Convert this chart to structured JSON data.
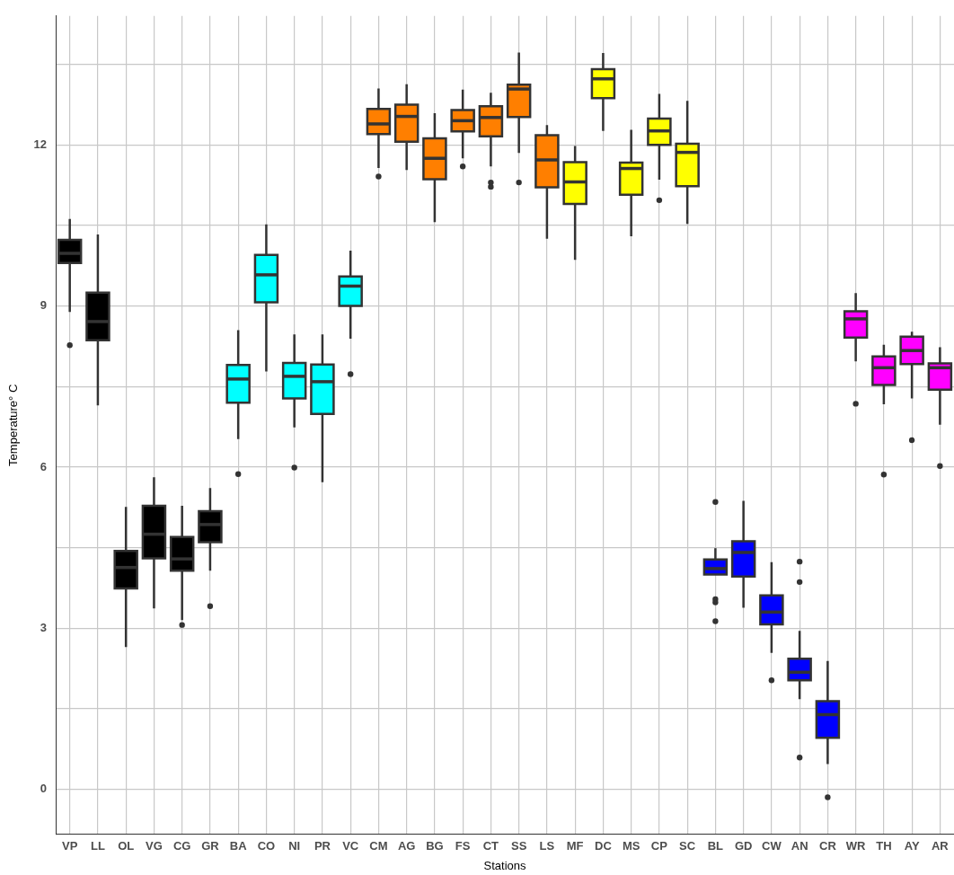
{
  "chart_data": {
    "type": "box",
    "xlabel": "Stations",
    "ylabel": "Temperature° C",
    "categories": [
      "VP",
      "LL",
      "OL",
      "VG",
      "CG",
      "GR",
      "BA",
      "CO",
      "NI",
      "PR",
      "VC",
      "CM",
      "AG",
      "BG",
      "FS",
      "CT",
      "SS",
      "LS",
      "MF",
      "DC",
      "MS",
      "CP",
      "SC",
      "BL",
      "GD",
      "CW",
      "AN",
      "CR",
      "WR",
      "TH",
      "AY",
      "AR"
    ],
    "series": [
      {
        "color": "#000000",
        "boxes": [
          {
            "low": 8.89,
            "q1": 9.8,
            "median": 9.98,
            "q3": 10.23,
            "high": 10.62,
            "outliers": [
              8.27
            ]
          },
          {
            "low": 7.15,
            "q1": 8.36,
            "median": 8.71,
            "q3": 9.25,
            "high": 10.33
          },
          {
            "low": 2.65,
            "q1": 3.74,
            "median": 4.13,
            "q3": 4.44,
            "high": 5.26
          },
          {
            "low": 3.37,
            "q1": 4.3,
            "median": 4.75,
            "q3": 5.28,
            "high": 5.81
          },
          {
            "low": 3.15,
            "q1": 4.07,
            "median": 4.29,
            "q3": 4.7,
            "high": 5.28,
            "outliers": [
              3.06
            ]
          },
          {
            "low": 4.07,
            "q1": 4.6,
            "median": 4.93,
            "q3": 5.18,
            "high": 5.61,
            "outliers": [
              3.41
            ]
          },
          null,
          null,
          null,
          null,
          null,
          null,
          null,
          null,
          null,
          null,
          null,
          null,
          null,
          null,
          null,
          null,
          null,
          null,
          null,
          null,
          null,
          null,
          null,
          null,
          null,
          null
        ]
      },
      {
        "color": "#00ffff",
        "boxes": [
          null,
          null,
          null,
          null,
          null,
          null,
          {
            "low": 6.52,
            "q1": 7.2,
            "median": 7.64,
            "q3": 7.9,
            "high": 8.55,
            "outliers": [
              5.87
            ]
          },
          {
            "low": 7.78,
            "q1": 9.07,
            "median": 9.58,
            "q3": 9.95,
            "high": 10.52
          },
          {
            "low": 6.74,
            "q1": 7.28,
            "median": 7.69,
            "q3": 7.94,
            "high": 8.47,
            "outliers": [
              5.99
            ]
          },
          {
            "low": 5.72,
            "q1": 6.99,
            "median": 7.59,
            "q3": 7.91,
            "high": 8.47
          },
          {
            "low": 8.39,
            "q1": 9.0,
            "median": 9.37,
            "q3": 9.55,
            "high": 10.03,
            "outliers": [
              7.73
            ]
          },
          null,
          null,
          null,
          null,
          null,
          null,
          null,
          null,
          null,
          null,
          null,
          null,
          null,
          null,
          null,
          null,
          null,
          null,
          null,
          null,
          null
        ]
      },
      {
        "color": "#ff7f00",
        "boxes": [
          null,
          null,
          null,
          null,
          null,
          null,
          null,
          null,
          null,
          null,
          null,
          {
            "low": 11.57,
            "q1": 12.2,
            "median": 12.39,
            "q3": 12.67,
            "high": 13.05,
            "outliers": [
              11.41
            ]
          },
          {
            "low": 11.53,
            "q1": 12.06,
            "median": 12.53,
            "q3": 12.75,
            "high": 13.13
          },
          {
            "low": 10.56,
            "q1": 11.36,
            "median": 11.75,
            "q3": 12.12,
            "high": 12.59
          },
          {
            "low": 11.75,
            "q1": 12.25,
            "median": 12.45,
            "q3": 12.65,
            "high": 13.03,
            "outliers": [
              11.6
            ]
          },
          {
            "low": 11.6,
            "q1": 12.16,
            "median": 12.51,
            "q3": 12.72,
            "high": 12.97,
            "outliers": [
              11.3,
              11.22
            ]
          },
          {
            "low": 11.85,
            "q1": 12.52,
            "median": 13.04,
            "q3": 13.12,
            "high": 13.72,
            "outliers": [
              11.3
            ]
          },
          {
            "low": 10.25,
            "q1": 11.21,
            "median": 11.72,
            "q3": 12.18,
            "high": 12.37
          },
          null,
          null,
          null,
          null,
          null,
          null,
          null,
          null,
          null,
          null,
          null,
          null,
          null,
          null
        ]
      },
      {
        "color": "#ffff00",
        "boxes": [
          null,
          null,
          null,
          null,
          null,
          null,
          null,
          null,
          null,
          null,
          null,
          null,
          null,
          null,
          null,
          null,
          null,
          null,
          {
            "low": 9.86,
            "q1": 10.9,
            "median": 11.31,
            "q3": 11.68,
            "high": 11.98
          },
          {
            "low": 12.26,
            "q1": 12.87,
            "median": 13.23,
            "q3": 13.41,
            "high": 13.71
          },
          {
            "low": 10.3,
            "q1": 11.07,
            "median": 11.56,
            "q3": 11.67,
            "high": 12.28
          },
          {
            "low": 11.35,
            "q1": 12.0,
            "median": 12.26,
            "q3": 12.49,
            "high": 12.95,
            "outliers": [
              10.97
            ]
          },
          {
            "low": 10.53,
            "q1": 11.23,
            "median": 11.86,
            "q3": 12.02,
            "high": 12.82
          },
          null,
          null,
          null,
          null,
          null,
          null,
          null,
          null,
          null
        ]
      },
      {
        "color": "#0000ff",
        "boxes": [
          null,
          null,
          null,
          null,
          null,
          null,
          null,
          null,
          null,
          null,
          null,
          null,
          null,
          null,
          null,
          null,
          null,
          null,
          null,
          null,
          null,
          null,
          null,
          {
            "low": 4.0,
            "q1": 4.0,
            "median": 4.11,
            "q3": 4.28,
            "high": 4.49,
            "outliers": [
              5.35,
              3.54,
              3.48,
              3.13
            ]
          },
          {
            "low": 3.38,
            "q1": 3.96,
            "median": 4.41,
            "q3": 4.62,
            "high": 5.37
          },
          {
            "low": 2.54,
            "q1": 3.07,
            "median": 3.3,
            "q3": 3.61,
            "high": 4.23,
            "outliers": [
              2.03
            ]
          },
          {
            "low": 1.68,
            "q1": 2.03,
            "median": 2.18,
            "q3": 2.43,
            "high": 2.95,
            "outliers": [
              4.24,
              3.86,
              0.59
            ]
          },
          {
            "low": 0.47,
            "q1": 0.96,
            "median": 1.39,
            "q3": 1.64,
            "high": 2.39,
            "outliers": [
              -0.15
            ]
          },
          null,
          null,
          null,
          null
        ]
      },
      {
        "color": "#ff00ff",
        "boxes": [
          null,
          null,
          null,
          null,
          null,
          null,
          null,
          null,
          null,
          null,
          null,
          null,
          null,
          null,
          null,
          null,
          null,
          null,
          null,
          null,
          null,
          null,
          null,
          null,
          null,
          null,
          null,
          null,
          {
            "low": 7.97,
            "q1": 8.41,
            "median": 8.76,
            "q3": 8.9,
            "high": 9.24,
            "outliers": [
              7.18
            ]
          },
          {
            "low": 7.17,
            "q1": 7.53,
            "median": 7.85,
            "q3": 8.06,
            "high": 8.28,
            "outliers": [
              5.86
            ]
          },
          {
            "low": 7.28,
            "q1": 7.92,
            "median": 8.17,
            "q3": 8.43,
            "high": 8.52,
            "outliers": [
              6.5
            ]
          },
          {
            "low": 6.79,
            "q1": 7.44,
            "median": 7.85,
            "q3": 7.93,
            "high": 8.23,
            "outliers": [
              6.02
            ]
          }
        ]
      }
    ],
    "ylim": [
      -0.84,
      14.4
    ],
    "yticks": [
      0,
      {
        "value": 1.5,
        "label": null
      },
      3,
      {
        "value": 4.5,
        "label": null
      },
      6,
      {
        "value": 7.5,
        "label": null
      },
      9,
      {
        "value": 10.5,
        "label": null
      },
      12,
      {
        "value": 13.5,
        "label": null
      }
    ],
    "grid": true
  }
}
